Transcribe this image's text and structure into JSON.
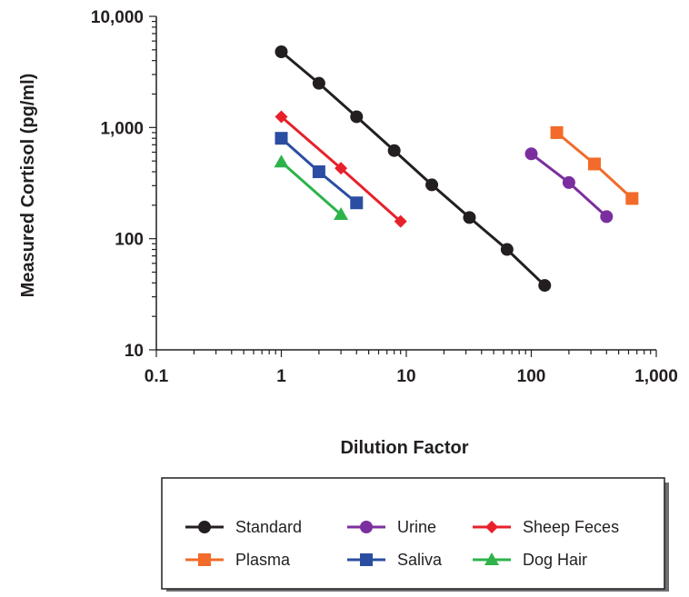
{
  "chart_data": {
    "type": "line",
    "xscale": "log",
    "yscale": "log",
    "xlim": [
      0.1,
      1000
    ],
    "ylim": [
      10,
      10000
    ],
    "xlabel": "Dilution Factor",
    "ylabel": "Measured Cortisol (pg/ml)",
    "x_tick_labels": [
      "0.1",
      "1",
      "10",
      "100",
      "1,000"
    ],
    "x_tick_values": [
      0.1,
      1,
      10,
      100,
      1000
    ],
    "y_tick_labels": [
      "10",
      "100",
      "1,000",
      "10,000"
    ],
    "y_tick_values": [
      10,
      100,
      1000,
      10000
    ],
    "grid": false,
    "legend_position": "bottom-right",
    "series": [
      {
        "name": "Standard",
        "color": "#231f20",
        "marker": "circle",
        "x": [
          1,
          2,
          4,
          8,
          16,
          32,
          64,
          128
        ],
        "y": [
          4800,
          2500,
          1250,
          620,
          305,
          155,
          80,
          38
        ]
      },
      {
        "name": "Urine",
        "color": "#7b2f9e",
        "marker": "circle",
        "x": [
          100,
          200,
          400
        ],
        "y": [
          580,
          320,
          158
        ]
      },
      {
        "name": "Sheep Feces",
        "color": "#e8202a",
        "marker": "diamond",
        "x": [
          1,
          3,
          9
        ],
        "y": [
          1250,
          430,
          143
        ]
      },
      {
        "name": "Plasma",
        "color": "#f26b2a",
        "marker": "square",
        "x": [
          160,
          320,
          640
        ],
        "y": [
          900,
          470,
          230
        ]
      },
      {
        "name": "Saliva",
        "color": "#2b4ea2",
        "marker": "square",
        "x": [
          1,
          2,
          4
        ],
        "y": [
          800,
          400,
          210
        ]
      },
      {
        "name": "Dog Hair",
        "color": "#2db34a",
        "marker": "triangle",
        "x": [
          1,
          3
        ],
        "y": [
          490,
          165
        ]
      }
    ]
  }
}
